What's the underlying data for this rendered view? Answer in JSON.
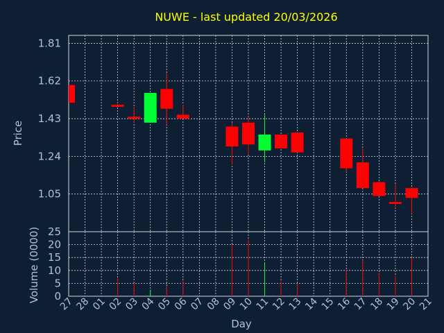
{
  "chart_data": {
    "type": "candlestick",
    "title": "NUWE - last updated 20/03/2026",
    "xlabel": "Day",
    "ylabel_price": "Price",
    "ylabel_volume": "Volume (0000)",
    "price_ticks": [
      "1.05",
      "1.24",
      "1.43",
      "1.62",
      "1.81"
    ],
    "price_ylim": [
      0.86,
      1.85
    ],
    "volume_ticks": [
      "0",
      "5",
      "10",
      "15",
      "20",
      "25"
    ],
    "volume_ylim": [
      0,
      25
    ],
    "x_labels": [
      "27",
      "28",
      "01",
      "02",
      "03",
      "04",
      "05",
      "06",
      "07",
      "08",
      "09",
      "10",
      "11",
      "12",
      "13",
      "14",
      "15",
      "16",
      "17",
      "18",
      "19",
      "20",
      "21"
    ],
    "grid": true,
    "colors": {
      "background": "#0f1f33",
      "up": "#00ff33",
      "down": "#ff0000",
      "title": "#ffff00",
      "text": "#a8c4e0",
      "grid": "#d0d8e0"
    },
    "candles": [
      {
        "x": "27",
        "open": 1.6,
        "high": 1.6,
        "low": 1.51,
        "close": 1.51,
        "volume": 0
      },
      {
        "x": "02",
        "open": 1.5,
        "high": 1.51,
        "low": 1.49,
        "close": 1.49,
        "volume": 7
      },
      {
        "x": "03",
        "open": 1.44,
        "high": 1.49,
        "low": 1.41,
        "close": 1.43,
        "volume": 5
      },
      {
        "x": "04",
        "open": 1.41,
        "high": 1.56,
        "low": 1.41,
        "close": 1.56,
        "volume": 2.5
      },
      {
        "x": "05",
        "open": 1.58,
        "high": 1.66,
        "low": 1.4,
        "close": 1.48,
        "volume": 4
      },
      {
        "x": "06",
        "open": 1.45,
        "high": 1.5,
        "low": 1.43,
        "close": 1.43,
        "volume": 6
      },
      {
        "x": "09",
        "open": 1.39,
        "high": 1.41,
        "low": 1.2,
        "close": 1.29,
        "volume": 20
      },
      {
        "x": "10",
        "open": 1.41,
        "high": 1.44,
        "low": 1.25,
        "close": 1.3,
        "volume": 22
      },
      {
        "x": "11",
        "open": 1.27,
        "high": 1.45,
        "low": 1.21,
        "close": 1.35,
        "volume": 13
      },
      {
        "x": "12",
        "open": 1.35,
        "high": 1.35,
        "low": 1.28,
        "close": 1.28,
        "volume": 6
      },
      {
        "x": "13",
        "open": 1.36,
        "high": 1.36,
        "low": 1.26,
        "close": 1.26,
        "volume": 5
      },
      {
        "x": "16",
        "open": 1.33,
        "high": 1.33,
        "low": 1.16,
        "close": 1.18,
        "volume": 10
      },
      {
        "x": "17",
        "open": 1.21,
        "high": 1.28,
        "low": 1.08,
        "close": 1.08,
        "volume": 14
      },
      {
        "x": "18",
        "open": 1.11,
        "high": 1.11,
        "low": 1.04,
        "close": 1.04,
        "volume": 9
      },
      {
        "x": "19",
        "open": 1.01,
        "high": 1.1,
        "low": 0.98,
        "close": 1.0,
        "volume": 8
      },
      {
        "x": "20",
        "open": 1.08,
        "high": 1.08,
        "low": 0.95,
        "close": 1.03,
        "volume": 15
      }
    ]
  }
}
